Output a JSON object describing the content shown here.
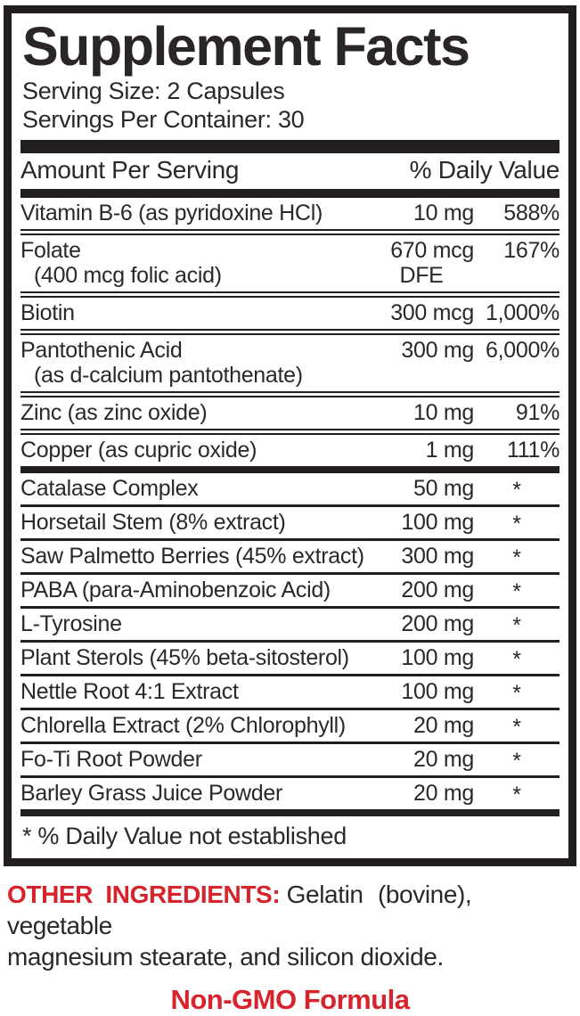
{
  "colors": {
    "accent_red": "#d6232c",
    "ink": "#2c2728",
    "rule_black": "#221e1f"
  },
  "panel": {
    "title": "Supplement Facts",
    "serving_size": "Serving Size: 2 Capsules",
    "servings_per_container": "Servings Per Container: 30",
    "columns": {
      "amount": "Amount Per Serving",
      "daily_value": "% Daily Value"
    },
    "groups": [
      {
        "rows": [
          {
            "name": [
              "Vitamin B-6 (as pyridoxine HCl)"
            ],
            "amount": [
              "10 mg"
            ],
            "dv": "588%"
          },
          {
            "name": [
              "Folate",
              "(400 mcg folic acid)"
            ],
            "amount": [
              "670 mcg",
              "DFE"
            ],
            "dv": "167%"
          },
          {
            "name": [
              "Biotin"
            ],
            "amount": [
              "300 mcg"
            ],
            "dv": "1,000%"
          },
          {
            "name": [
              "Pantothenic Acid",
              "(as d-calcium pantothenate)"
            ],
            "amount": [
              "300 mg"
            ],
            "dv": "6,000%"
          },
          {
            "name": [
              "Zinc (as zinc oxide)"
            ],
            "amount": [
              "10 mg"
            ],
            "dv": "91%"
          },
          {
            "name": [
              "Copper (as cupric oxide)"
            ],
            "amount": [
              "1 mg"
            ],
            "dv": "111%"
          }
        ]
      },
      {
        "rows": [
          {
            "name": [
              "Catalase Complex"
            ],
            "amount": [
              "50 mg"
            ],
            "dv": "*"
          },
          {
            "name": [
              "Horsetail Stem (8% extract)"
            ],
            "amount": [
              "100 mg"
            ],
            "dv": "*"
          },
          {
            "name": [
              "Saw Palmetto Berries (45% extract)"
            ],
            "amount": [
              "300 mg"
            ],
            "dv": "*"
          },
          {
            "name": [
              "PABA (para-Aminobenzoic Acid)"
            ],
            "amount": [
              "200 mg"
            ],
            "dv": "*"
          },
          {
            "name": [
              "L-Tyrosine"
            ],
            "amount": [
              "200 mg"
            ],
            "dv": "*"
          },
          {
            "name": [
              "Plant Sterols (45% beta-sitosterol)"
            ],
            "amount": [
              "100 mg"
            ],
            "dv": "*"
          },
          {
            "name": [
              "Nettle Root 4:1 Extract"
            ],
            "amount": [
              "100 mg"
            ],
            "dv": "*"
          },
          {
            "name": [
              "Chlorella Extract (2% Chlorophyll)"
            ],
            "amount": [
              "20 mg"
            ],
            "dv": "*"
          },
          {
            "name": [
              "Fo-Ti Root Powder"
            ],
            "amount": [
              "20 mg"
            ],
            "dv": "*"
          },
          {
            "name": [
              "Barley Grass Juice Powder"
            ],
            "amount": [
              "20 mg"
            ],
            "dv": "*"
          }
        ]
      }
    ],
    "footnote": "* % Daily Value not established"
  },
  "other_ingredients": {
    "label": "OTHER INGREDIENTS:",
    "line1": "Gelatin (bovine), vegetable",
    "line2": "magnesium stearate, and silicon dioxide."
  },
  "non_gmo": "Non-GMO Formula"
}
